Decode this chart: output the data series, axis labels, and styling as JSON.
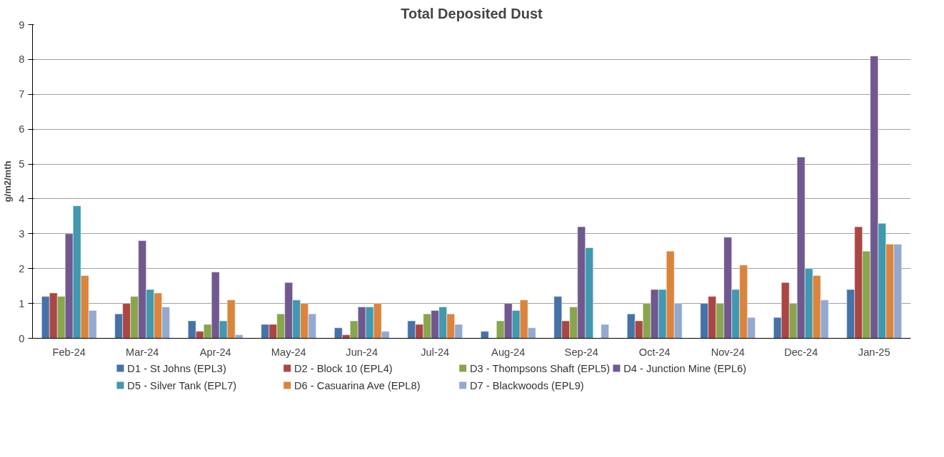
{
  "chart_data": {
    "type": "bar",
    "title": "Total Deposited Dust",
    "ylabel": "g/m2/mth",
    "categories": [
      "Feb-24",
      "Mar-24",
      "Apr-24",
      "May-24",
      "Jun-24",
      "Jul-24",
      "Aug-24",
      "Sep-24",
      "Oct-24",
      "Nov-24",
      "Dec-24",
      "Jan-25"
    ],
    "series": [
      {
        "name": "D1 - St Johns (EPL3)",
        "color": "#4572a7",
        "values": [
          1.2,
          0.7,
          0.5,
          0.4,
          0.3,
          0.5,
          0.2,
          1.2,
          0.7,
          1.0,
          0.6,
          1.4
        ]
      },
      {
        "name": "D2 - Block 10 (EPL4)",
        "color": "#aa4643",
        "values": [
          1.3,
          1.0,
          0.2,
          0.4,
          0.1,
          0.4,
          null,
          0.5,
          0.5,
          1.2,
          1.6,
          3.2
        ]
      },
      {
        "name": "D3 - Thompsons Shaft (EPL5)",
        "color": "#89a54e",
        "values": [
          1.2,
          1.2,
          0.4,
          0.7,
          0.5,
          0.7,
          0.5,
          0.9,
          1.0,
          1.0,
          1.0,
          2.5
        ]
      },
      {
        "name": "D4 - Junction Mine (EPL6)",
        "color": "#71588f",
        "values": [
          3.0,
          2.8,
          1.9,
          1.6,
          0.9,
          0.8,
          1.0,
          3.2,
          1.4,
          2.9,
          5.2,
          8.1
        ]
      },
      {
        "name": "D5 - Silver Tank (EPL7)",
        "color": "#4198af",
        "values": [
          3.8,
          1.4,
          0.5,
          1.1,
          0.9,
          0.9,
          0.8,
          2.6,
          1.4,
          1.4,
          2.0,
          3.3
        ]
      },
      {
        "name": "D6 - Casuarina Ave (EPL8)",
        "color": "#db843d",
        "values": [
          1.8,
          1.3,
          1.1,
          1.0,
          1.0,
          0.7,
          1.1,
          null,
          2.5,
          2.1,
          1.8,
          2.7
        ]
      },
      {
        "name": "D7 - Blackwoods (EPL9)",
        "color": "#93a9cf",
        "values": [
          0.8,
          0.9,
          0.1,
          0.7,
          0.2,
          0.4,
          0.3,
          0.4,
          1.0,
          0.6,
          1.1,
          2.7
        ]
      }
    ],
    "ylim": [
      0,
      9
    ],
    "yticks": [
      0,
      1,
      2,
      3,
      4,
      5,
      6,
      7,
      8,
      9
    ],
    "grid": "y",
    "legend": "bottom"
  }
}
